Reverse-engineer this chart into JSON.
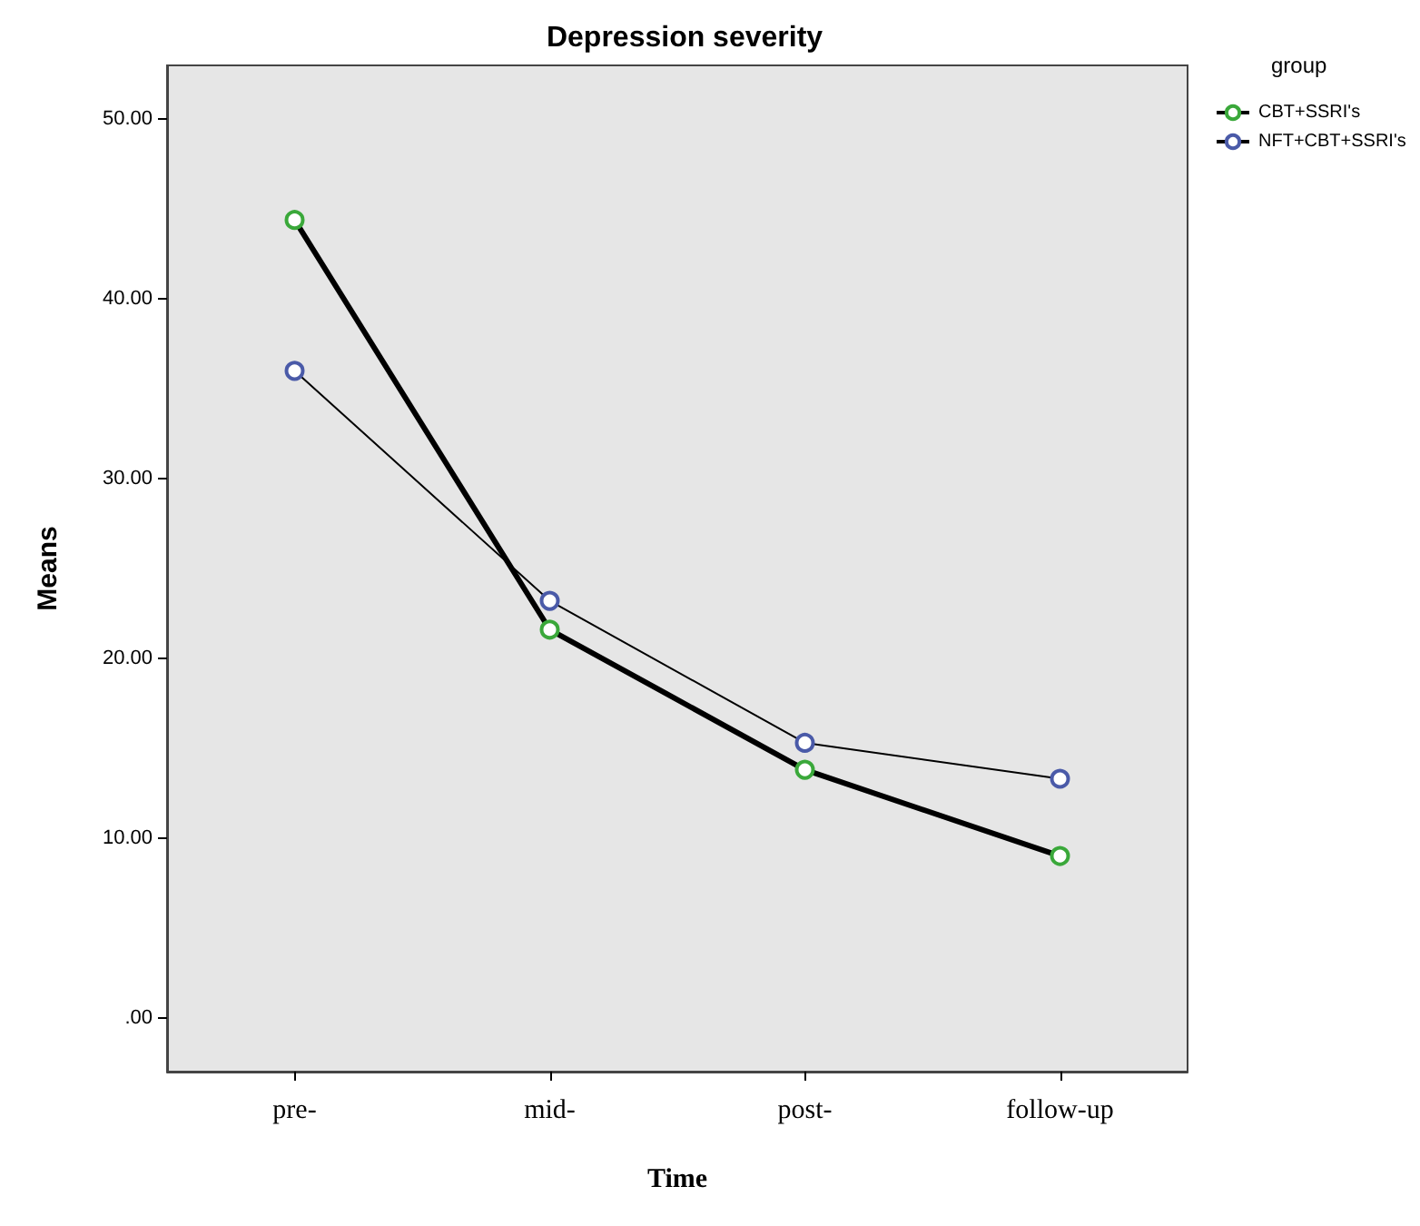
{
  "chart_data": {
    "type": "line",
    "title": "Depression severity",
    "xlabel": "Time",
    "ylabel": "Means",
    "legend_title": "group",
    "legend": "top right",
    "marker": "circle",
    "grid": false,
    "categories": [
      "pre-",
      "mid-",
      "post-",
      "follow-up"
    ],
    "ylim": [
      -3,
      53
    ],
    "yticks": [
      {
        "value": 0,
        "label": ".00"
      },
      {
        "value": 10,
        "label": "10.00"
      },
      {
        "value": 20,
        "label": "20.00"
      },
      {
        "value": 30,
        "label": "30.00"
      },
      {
        "value": 40,
        "label": "40.00"
      },
      {
        "value": 50,
        "label": "50.00"
      }
    ],
    "series": [
      {
        "name": "CBT+SSRI's",
        "color": "#000000",
        "values": [
          44.4,
          21.6,
          13.8,
          9.0
        ]
      },
      {
        "name": "NFT+CBT+SSRI's",
        "color": "#000000",
        "values": [
          36.0,
          23.2,
          15.3,
          13.3
        ]
      }
    ]
  }
}
